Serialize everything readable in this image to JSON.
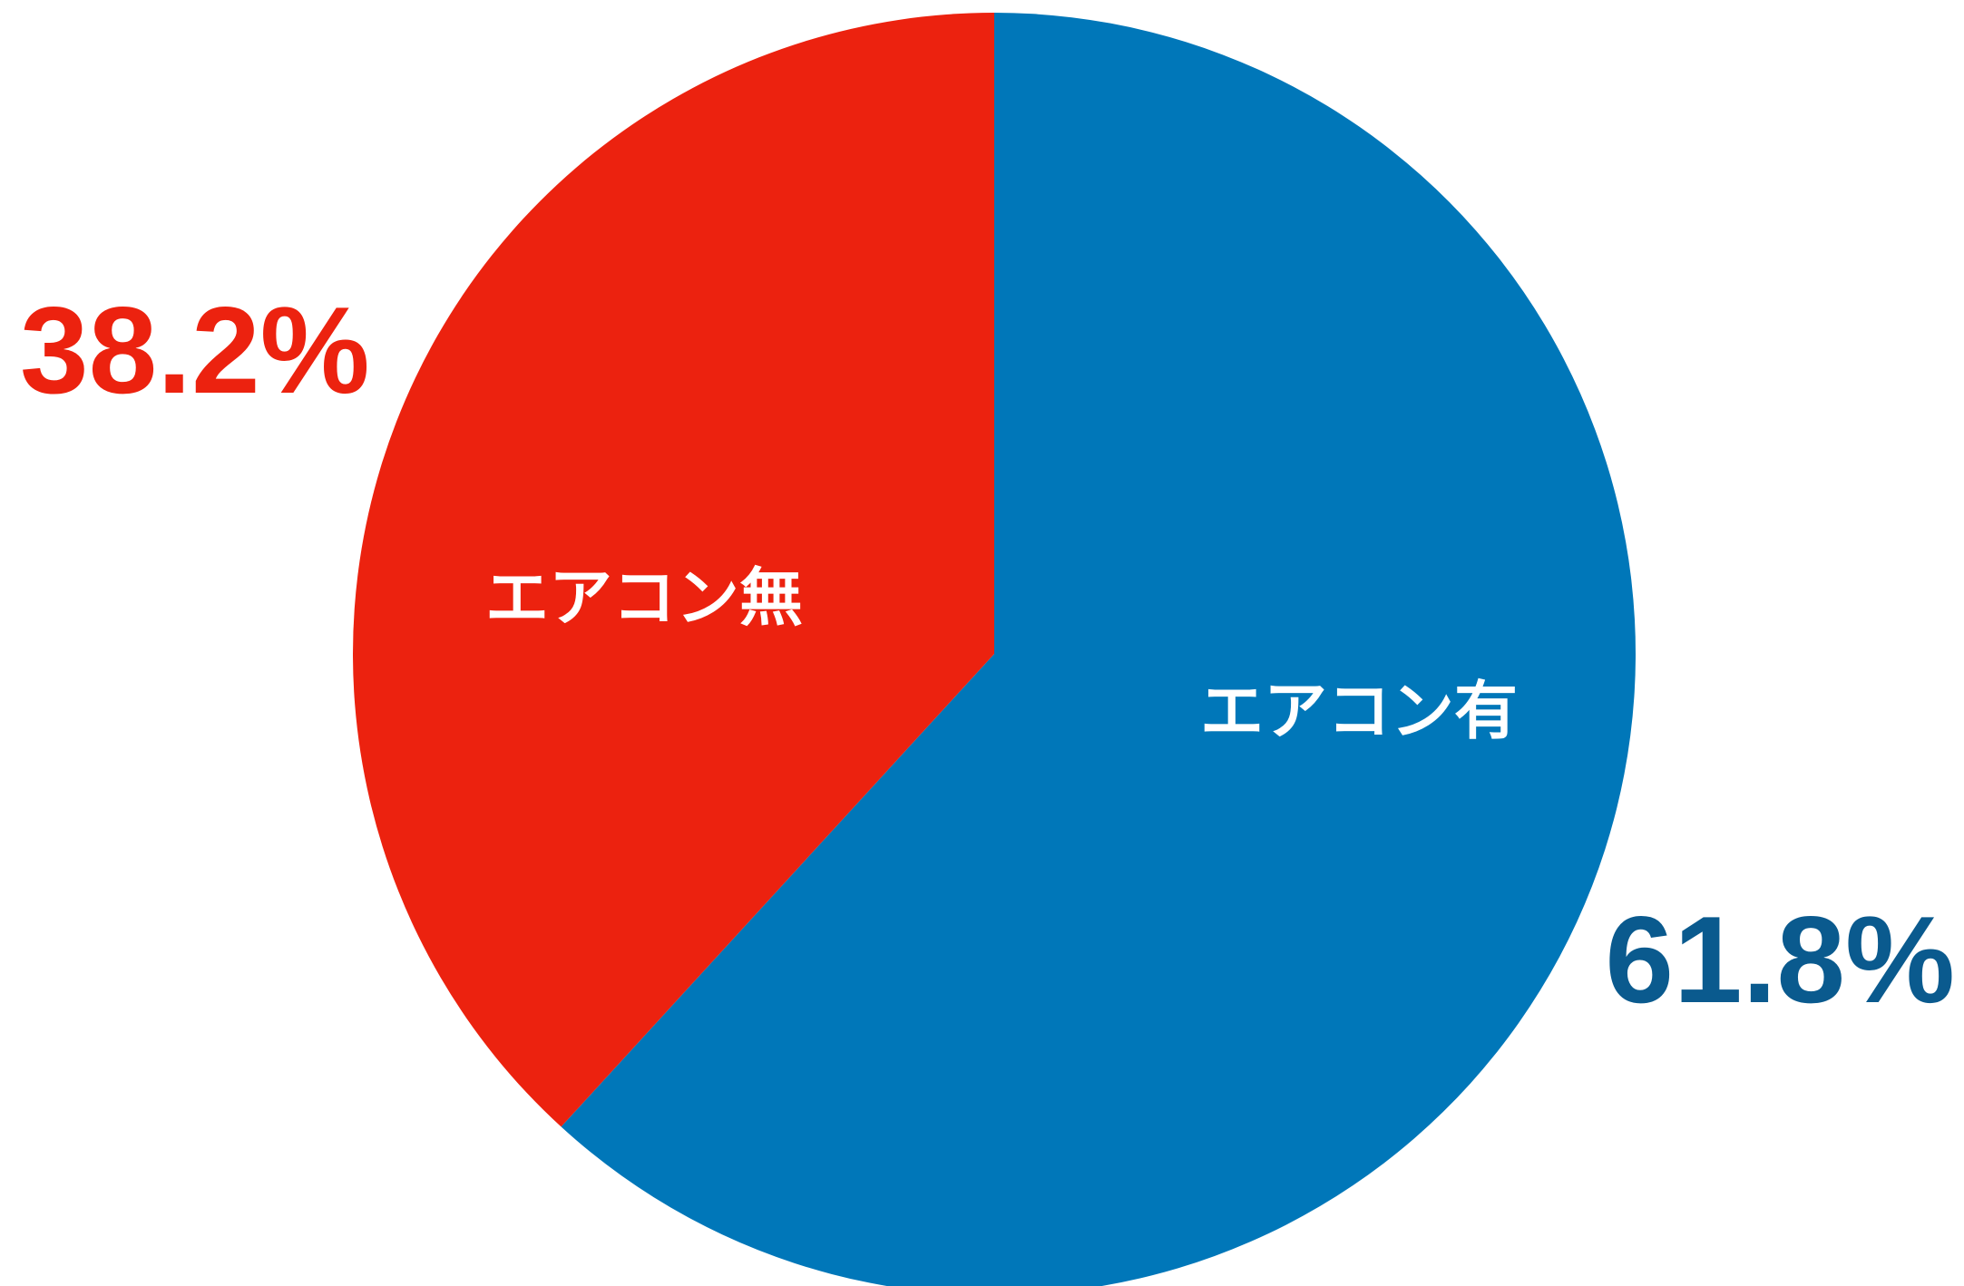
{
  "chart_data": {
    "type": "pie",
    "start_angle": "12 o'clock",
    "direction": "clockwise",
    "slices": [
      {
        "label": "エアコン有",
        "value": 61.8,
        "value_label": "61.8%",
        "color": "#0077B9",
        "value_label_color": "#0A5A8E"
      },
      {
        "label": "エアコン無",
        "value": 38.2,
        "value_label": "38.2%",
        "color": "#EC220F",
        "value_label_color": "#EC220F"
      }
    ]
  }
}
